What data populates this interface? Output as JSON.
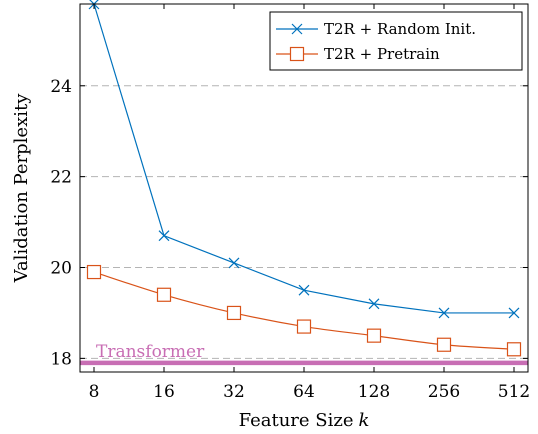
{
  "chart_data": {
    "type": "line",
    "title": "",
    "xlabel": "Feature Size",
    "xlabel_var": "k",
    "ylabel": "Validation Perplexity",
    "x": [
      8,
      16,
      32,
      64,
      128,
      256,
      512
    ],
    "x_ticks": [
      "8",
      "16",
      "32",
      "64",
      "128",
      "256",
      "512"
    ],
    "x_scale": "log2",
    "y_ticks": [
      18,
      20,
      22,
      24
    ],
    "ylim": [
      17.7,
      25.8
    ],
    "grid": "horizontal dashed",
    "legend_position": "top-right",
    "series": [
      {
        "name": "T2R + Random Init.",
        "values": [
          25.8,
          20.7,
          20.1,
          19.5,
          19.2,
          19.0,
          19.0
        ],
        "color": "#0072bd",
        "marker": "x"
      },
      {
        "name": "T2R + Pretrain",
        "values": [
          19.9,
          19.4,
          19.0,
          18.7,
          18.5,
          18.3,
          18.2
        ],
        "color": "#d95319",
        "marker": "square"
      }
    ],
    "reference_line": {
      "label": "Transformer",
      "value": 17.9,
      "color": "#c86eb4"
    }
  }
}
